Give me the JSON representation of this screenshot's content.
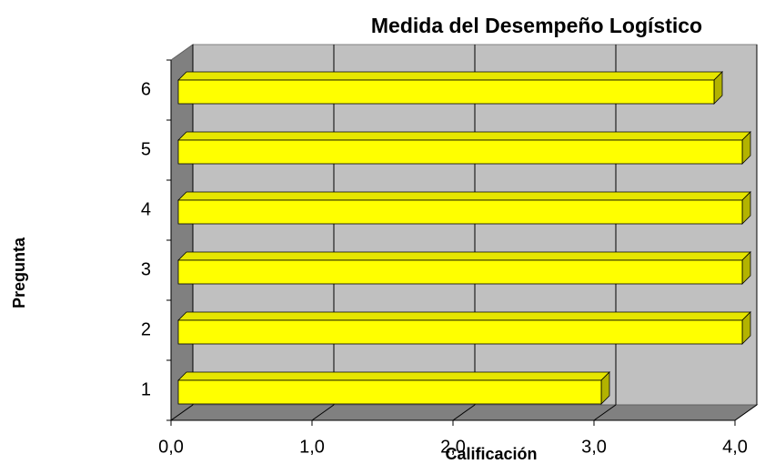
{
  "chart_data": {
    "type": "bar",
    "orientation": "horizontal",
    "title": "Medida del Desempeño Logístico",
    "x_label": "Calificación",
    "y_label": "Pregunta",
    "categories": [
      "1",
      "2",
      "3",
      "4",
      "5",
      "6"
    ],
    "values": [
      3.0,
      4.0,
      4.0,
      4.0,
      4.0,
      3.8
    ],
    "color": "#ffff00",
    "xlim": [
      0,
      4
    ],
    "xticks": [
      {
        "value": 0,
        "label": "0,0"
      },
      {
        "value": 1,
        "label": "1,0"
      },
      {
        "value": 2,
        "label": "2,0"
      },
      {
        "value": 3,
        "label": "3,0"
      },
      {
        "value": 4,
        "label": "4,0"
      }
    ],
    "grid": true
  }
}
